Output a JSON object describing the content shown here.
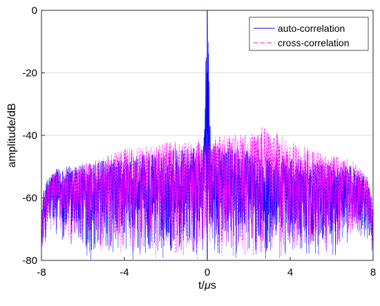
{
  "chart_data": {
    "type": "line",
    "title": "",
    "xlabel": "t/μs",
    "xlabel_prefix": "t/",
    "xlabel_italic": "μ",
    "xlabel_suffix": "s",
    "ylabel": "amplitude/dB",
    "xlim": [
      -8,
      8
    ],
    "ylim": [
      -80,
      0
    ],
    "xticks": [
      -8,
      -4,
      0,
      4,
      8
    ],
    "yticks": [
      -80,
      -60,
      -40,
      -20,
      0
    ],
    "xtick_labels": [
      "-8",
      "-4",
      "0",
      "4",
      "8"
    ],
    "ytick_labels": [
      "-80",
      "-60",
      "-40",
      "-20",
      "0"
    ],
    "grid": "horizontal",
    "legend_position": "top-right",
    "series": [
      {
        "name": "auto-correlation",
        "color": "#0000ff",
        "line_style": "solid",
        "envelope_x": [
          -8,
          -7.9,
          -7.7,
          -7.4,
          -7.0,
          -6.0,
          -5.0,
          -4.0,
          -3.0,
          -2.0,
          -1.0,
          -0.5,
          -0.2,
          0,
          0.2,
          0.5,
          1.0,
          2.0,
          3.0,
          4.0,
          5.0,
          6.0,
          7.0,
          7.4,
          7.7,
          7.9,
          8
        ],
        "envelope_top": [
          -66,
          -58,
          -53,
          -51,
          -50,
          -49,
          -48,
          -47,
          -46,
          -45,
          -44,
          -44,
          -42,
          0,
          -42,
          -44,
          -44,
          -45,
          -46,
          -47,
          -48,
          -49,
          -50,
          -51,
          -53,
          -58,
          -66
        ],
        "envelope_bottom": [
          -80,
          -76,
          -74,
          -72,
          -74,
          -80,
          -80,
          -80,
          -80,
          -80,
          -80,
          -80,
          -80,
          -80,
          -80,
          -80,
          -80,
          -80,
          -80,
          -80,
          -80,
          -80,
          -74,
          -72,
          -74,
          -76,
          -80
        ],
        "peak": {
          "x": 0,
          "y": 0
        }
      },
      {
        "name": "cross-correlation",
        "color": "#ff00ff",
        "line_style": "dashed",
        "envelope_x": [
          -8,
          -7.8,
          -7.5,
          -7.0,
          -6.0,
          -5.0,
          -4.0,
          -3.0,
          -2.0,
          -1.0,
          0,
          1.0,
          2.0,
          2.8,
          3.5,
          4.0,
          5.0,
          6.0,
          7.0,
          7.5,
          7.8,
          8
        ],
        "envelope_top": [
          -64,
          -57,
          -52,
          -51,
          -49,
          -47,
          -44,
          -43,
          -42,
          -42,
          -41,
          -40,
          -39,
          -37,
          -40,
          -42,
          -44,
          -46,
          -48,
          -51,
          -54,
          -62
        ],
        "envelope_bottom": [
          -78,
          -74,
          -72,
          -73,
          -77,
          -78,
          -79,
          -80,
          -80,
          -80,
          -80,
          -80,
          -80,
          -80,
          -80,
          -79,
          -78,
          -77,
          -73,
          -72,
          -74,
          -78
        ]
      }
    ]
  }
}
